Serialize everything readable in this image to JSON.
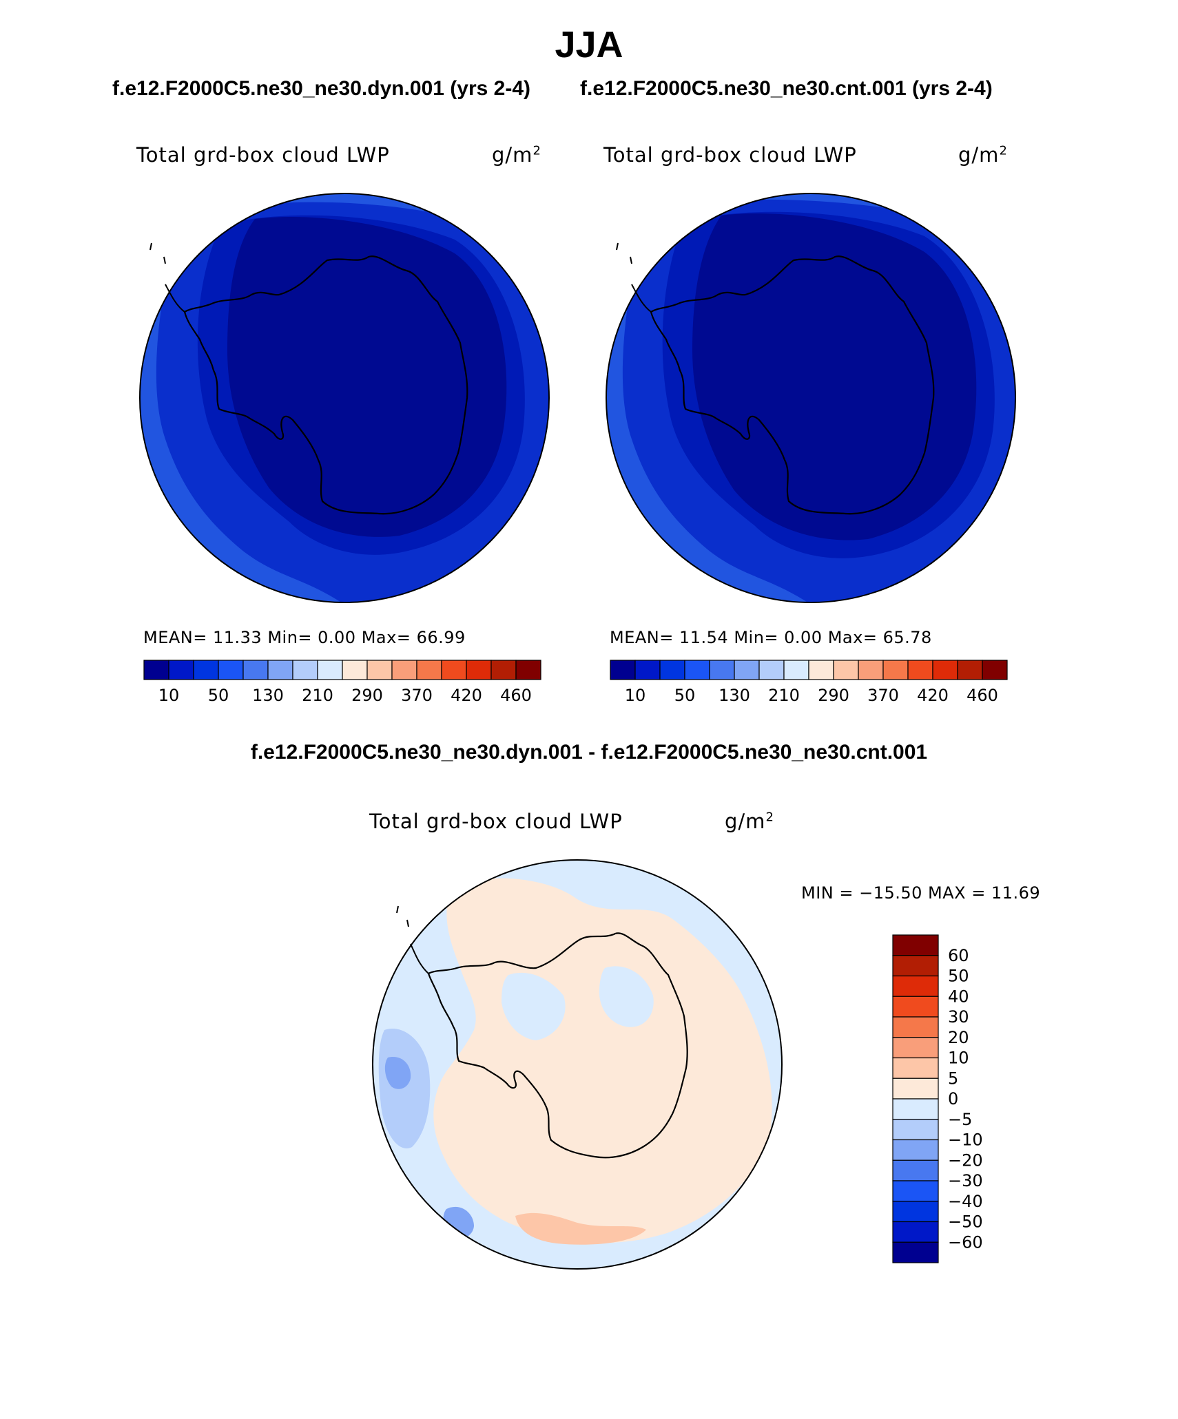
{
  "chart_data": [
    {
      "type": "heatmap",
      "projection": "south-polar-stereographic",
      "panel": "case1",
      "title": "JJA",
      "subtitle": "f.e12.F2000C5.ne30_ne30.dyn.001 (yrs 2-4)",
      "variable": "Total grd-box cloud LWP",
      "units": "g/m",
      "units_exp": "2",
      "stats_text": "MEAN=   11.33   Min=     0.00   Max=    66.99",
      "stats": {
        "mean": 11.33,
        "min": 0.0,
        "max": 66.99
      },
      "colorbar_levels": [
        10,
        50,
        130,
        210,
        290,
        370,
        420,
        460
      ],
      "colorbar_labels": [
        "10",
        "50",
        "130",
        "210",
        "290",
        "370",
        "420",
        "460"
      ],
      "colorbar_colors": [
        "#000090",
        "#0018c8",
        "#0035e0",
        "#1b55f5",
        "#4878f0",
        "#80a5f5",
        "#b3cdfa",
        "#d9ebfe",
        "#fde9d9",
        "#fdc6a8",
        "#f99e7a",
        "#f5784a",
        "#f04b1e",
        "#de2b08",
        "#b21e04",
        "#800000"
      ]
    },
    {
      "type": "heatmap",
      "projection": "south-polar-stereographic",
      "panel": "case2",
      "subtitle": "f.e12.F2000C5.ne30_ne30.cnt.001 (yrs 2-4)",
      "variable": "Total grd-box cloud LWP",
      "units": "g/m",
      "units_exp": "2",
      "stats_text": "MEAN=   11.54   Min=     0.00   Max=    65.78",
      "stats": {
        "mean": 11.54,
        "min": 0.0,
        "max": 65.78
      },
      "colorbar_levels": [
        10,
        50,
        130,
        210,
        290,
        370,
        420,
        460
      ],
      "colorbar_labels": [
        "10",
        "50",
        "130",
        "210",
        "290",
        "370",
        "420",
        "460"
      ],
      "colorbar_colors": [
        "#000090",
        "#0018c8",
        "#0035e0",
        "#1b55f5",
        "#4878f0",
        "#80a5f5",
        "#b3cdfa",
        "#d9ebfe",
        "#fde9d9",
        "#fdc6a8",
        "#f99e7a",
        "#f5784a",
        "#f04b1e",
        "#de2b08",
        "#b21e04",
        "#800000"
      ]
    },
    {
      "type": "heatmap",
      "projection": "south-polar-stereographic",
      "panel": "difference",
      "subtitle": "f.e12.F2000C5.ne30_ne30.dyn.001 - f.e12.F2000C5.ne30_ne30.cnt.001",
      "variable": "Total grd-box cloud LWP",
      "units": "g/m",
      "units_exp": "2",
      "stats_text": "MIN = −15.50 MAX =   11.69",
      "stats": {
        "min": -15.5,
        "max": 11.69
      },
      "colorbar_levels": [
        60,
        50,
        40,
        30,
        20,
        10,
        5,
        0,
        -5,
        -10,
        -20,
        -30,
        -40,
        -50,
        -60
      ],
      "colorbar_labels": [
        "60",
        "50",
        "40",
        "30",
        "20",
        "10",
        "5",
        "0",
        "−5",
        "−10",
        "−20",
        "−30",
        "−40",
        "−50",
        "−60"
      ],
      "colorbar_colors": [
        "#800000",
        "#b21e04",
        "#de2b08",
        "#f04b1e",
        "#f5784a",
        "#f99e7a",
        "#fdc6a8",
        "#fde9d9",
        "#d9ebfe",
        "#b3cdfa",
        "#80a5f5",
        "#4878f0",
        "#1b55f5",
        "#0035e0",
        "#0018c8",
        "#000090"
      ]
    }
  ],
  "header": {
    "title": "JJA",
    "case1": "f.e12.F2000C5.ne30_ne30.dyn.001 (yrs 2-4)",
    "case2": "f.e12.F2000C5.ne30_ne30.cnt.001 (yrs 2-4)",
    "diff": "f.e12.F2000C5.ne30_ne30.dyn.001 - f.e12.F2000C5.ne30_ne30.cnt.001"
  },
  "colors": {
    "ocean_far": "#2155e0",
    "ocean_mid": "#0a2fcc",
    "ocean_near": "#001ab6",
    "interior": "#000a91",
    "diff_pos": "#fde9d9",
    "diff_pos2": "#fdc6a8",
    "diff_neg": "#d9ebfe",
    "diff_neg2": "#b3cdfa",
    "diff_neg3": "#80a5f5",
    "outline": "#000000"
  }
}
